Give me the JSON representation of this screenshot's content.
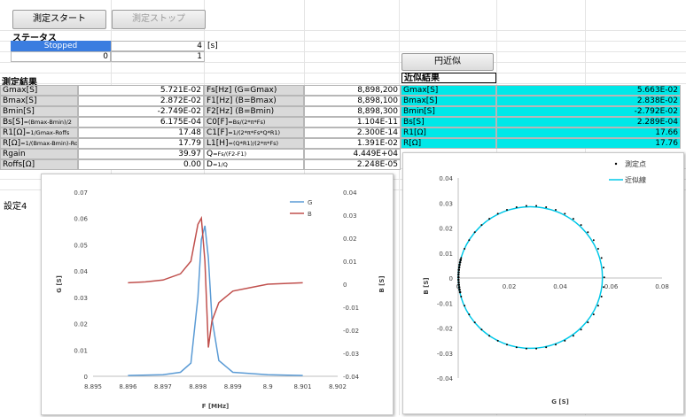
{
  "toolbar": {
    "start_label": "測定スタート",
    "stop_label": "測定ストップ"
  },
  "status": {
    "title": "ステータス",
    "state": "Stopped",
    "value1": "4",
    "unit": "[s]",
    "value2": "0",
    "value3": "1"
  },
  "fit_button_label": "円近似",
  "measure": {
    "title": "測定結果",
    "left": [
      {
        "label": "Gmax[S]",
        "value": "5.721E-02"
      },
      {
        "label": "Bmax[S]",
        "value": "2.872E-02"
      },
      {
        "label": "Bmin[S]",
        "value": "-2.749E-02"
      },
      {
        "label": "Bs[S]",
        "small": "=(Bmax-Bmin)/2",
        "value": "6.175E-04"
      },
      {
        "label": "R1[Ω]",
        "small": "=1/Gmax-Roffs",
        "value": "17.48"
      },
      {
        "label": "R[Ω]",
        "small": "=1/(Bmax-Bmin)-Roffs",
        "value": "17.79"
      },
      {
        "label": "Rgain",
        "small": "",
        "value": "39.97"
      },
      {
        "label": "Roffs[Ω]",
        "small": "",
        "value": "0.00"
      }
    ],
    "right": [
      {
        "label": "Fs[Hz] (G=Gmax)",
        "small": "",
        "value": "8,898,200"
      },
      {
        "label": "F1[Hz] (B=Bmax)",
        "small": "",
        "value": "8,898,100"
      },
      {
        "label": "F2[Hz] (B=Bmin)",
        "small": "",
        "value": "8,898,300"
      },
      {
        "label": "C0[F]",
        "small": "=Bs/(2*π*Fs)",
        "value": "1.104E-11"
      },
      {
        "label": "C1[F]",
        "small": "=1/(2*π*Fs*Q*R1)",
        "value": "2.300E-14"
      },
      {
        "label": "L1[H]",
        "small": "=(Q*R1)/(2*π*Fs)",
        "value": "1.391E-02"
      },
      {
        "label": "Q",
        "small": "=Fs/(F2-F1)",
        "value": "4.449E+04"
      },
      {
        "label": "D",
        "small": "=1/Q",
        "value": "2.248E-05"
      }
    ]
  },
  "approx": {
    "title": "近似結果",
    "rows": [
      {
        "label": "Gmax[S]",
        "value": "5.663E-02"
      },
      {
        "label": "Bmax[S]",
        "value": "2.838E-02"
      },
      {
        "label": "Bmin[S]",
        "value": "-2.792E-02"
      },
      {
        "label": "Bs[S]",
        "value": "2.289E-04"
      },
      {
        "label": "R1[Ω]",
        "value": "17.66"
      },
      {
        "label": "R[Ω]",
        "value": "17.76"
      }
    ]
  },
  "background_sheet": {
    "label": "設定4"
  },
  "colors": {
    "status": "#3a7de0",
    "cyan": "#00e8e8",
    "g_series": "#5b9bd5",
    "b_series": "#c0504d"
  },
  "chart_data": [
    {
      "type": "line",
      "xlabel": "F [MHz]",
      "ylabel": "G [S]",
      "y2label": "B [S]",
      "xlim": [
        8.895,
        8.902
      ],
      "ylim": [
        0,
        0.07
      ],
      "y2lim": [
        -0.04,
        0.04
      ],
      "x_ticks": [
        "8.895",
        "8.896",
        "8.897",
        "8.898",
        "8.899",
        "8.9",
        "8.901",
        "8.902"
      ],
      "y_ticks": [
        "0",
        "0.01",
        "0.02",
        "0.03",
        "0.04",
        "0.05",
        "0.06",
        "0.07"
      ],
      "y2_ticks": [
        "-0.04",
        "-0.03",
        "-0.02",
        "-0.01",
        "0",
        "0.01",
        "0.02",
        "0.03",
        "0.04"
      ],
      "legend": "top-right",
      "series": [
        {
          "name": "G",
          "axis": "left",
          "x": [
            8.896,
            8.897,
            8.8975,
            8.8978,
            8.898,
            8.8981,
            8.8982,
            8.8983,
            8.8984,
            8.8986,
            8.899,
            8.9,
            8.901
          ],
          "values": [
            0.0003,
            0.0006,
            0.0015,
            0.005,
            0.03,
            0.052,
            0.0572,
            0.045,
            0.022,
            0.006,
            0.0015,
            0.0006,
            0.0003
          ]
        },
        {
          "name": "B",
          "axis": "right",
          "x": [
            8.896,
            8.8965,
            8.897,
            8.8975,
            8.8978,
            8.898,
            8.8981,
            8.8982,
            8.8983,
            8.8984,
            8.8986,
            8.899,
            8.8995,
            8.9,
            8.901
          ],
          "values": [
            0.0006,
            0.001,
            0.0018,
            0.0045,
            0.01,
            0.026,
            0.0287,
            0.01,
            -0.0275,
            -0.016,
            -0.008,
            -0.003,
            -0.0015,
            0.0,
            0.0006
          ]
        }
      ]
    },
    {
      "type": "scatter",
      "xlabel": "G [S]",
      "ylabel": "B [S]",
      "xlim": [
        0,
        0.08
      ],
      "ylim": [
        -0.04,
        0.04
      ],
      "x_ticks": [
        "0",
        "0.02",
        "0.04",
        "0.06",
        "0.08"
      ],
      "y_ticks": [
        "-0.04",
        "-0.03",
        "-0.02",
        "-0.01",
        "0",
        "0.01",
        "0.02",
        "0.03",
        "0.04"
      ],
      "legend": "top-right",
      "series": [
        {
          "name": "測定点",
          "kind": "points",
          "center": [
            0.0287,
            0.0003
          ],
          "radius": 0.0286,
          "count": 46
        },
        {
          "name": "近似線",
          "kind": "circle",
          "center": [
            0.0283,
            0.0002
          ],
          "radius": 0.0283
        }
      ]
    }
  ]
}
